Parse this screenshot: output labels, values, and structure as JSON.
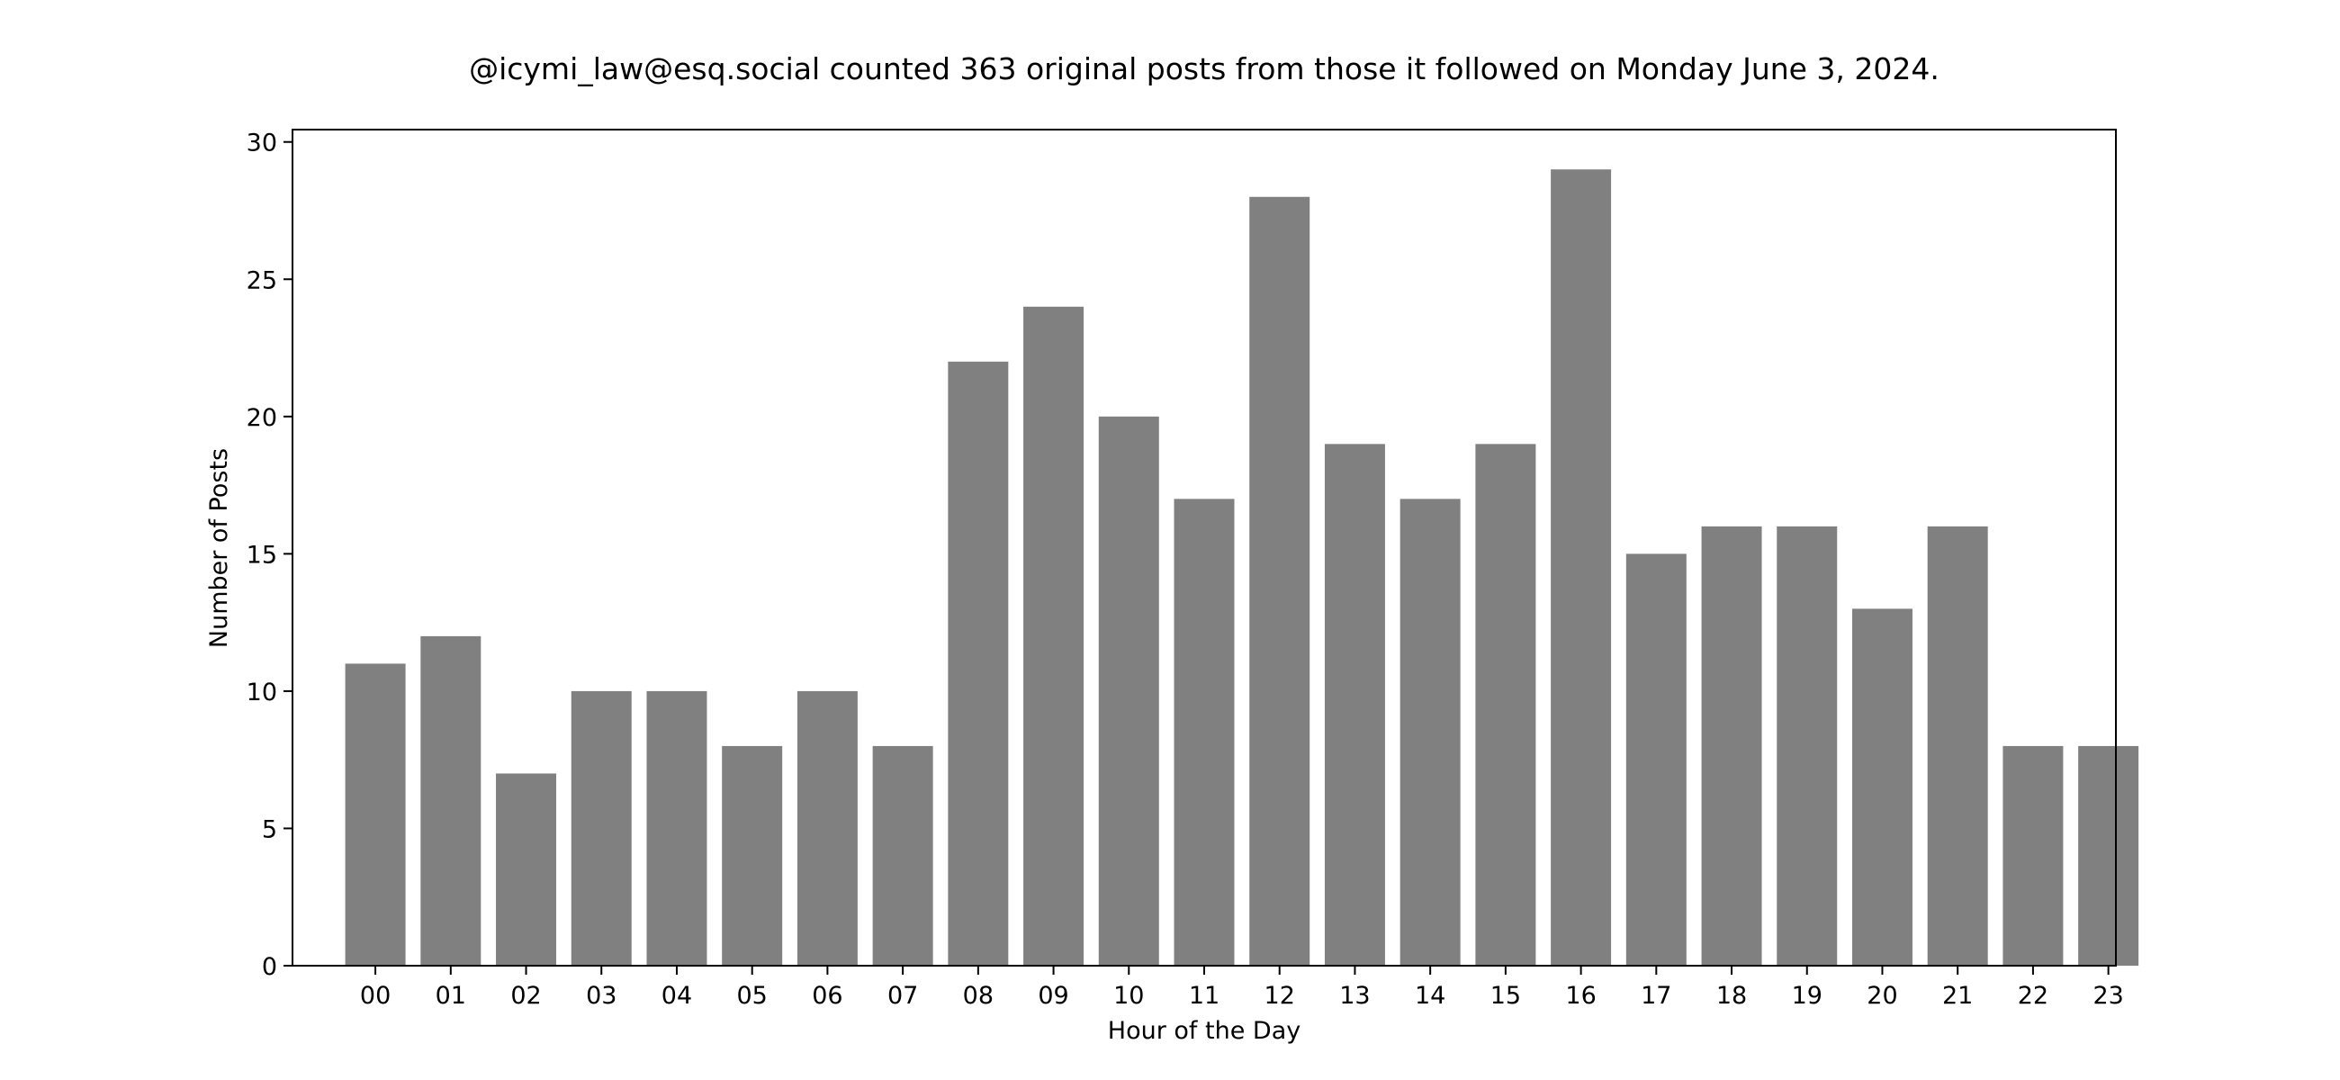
{
  "chart_data": {
    "type": "bar",
    "title": "@icymi_law@esq.social counted 363 original posts from those it followed on Monday June 3, 2024.",
    "xlabel": "Hour of the Day",
    "ylabel": "Number of Posts",
    "categories": [
      "00",
      "01",
      "02",
      "03",
      "04",
      "05",
      "06",
      "07",
      "08",
      "09",
      "10",
      "11",
      "12",
      "13",
      "14",
      "15",
      "16",
      "17",
      "18",
      "19",
      "20",
      "21",
      "22",
      "23"
    ],
    "values": [
      11,
      12,
      7,
      10,
      10,
      8,
      10,
      8,
      22,
      24,
      20,
      17,
      28,
      19,
      17,
      19,
      29,
      15,
      16,
      16,
      13,
      16,
      8,
      8
    ],
    "ylim": [
      0,
      30.45
    ],
    "yticks": [
      0,
      5,
      10,
      15,
      20,
      25,
      30
    ],
    "grid": false,
    "bar_color": "#808080"
  }
}
